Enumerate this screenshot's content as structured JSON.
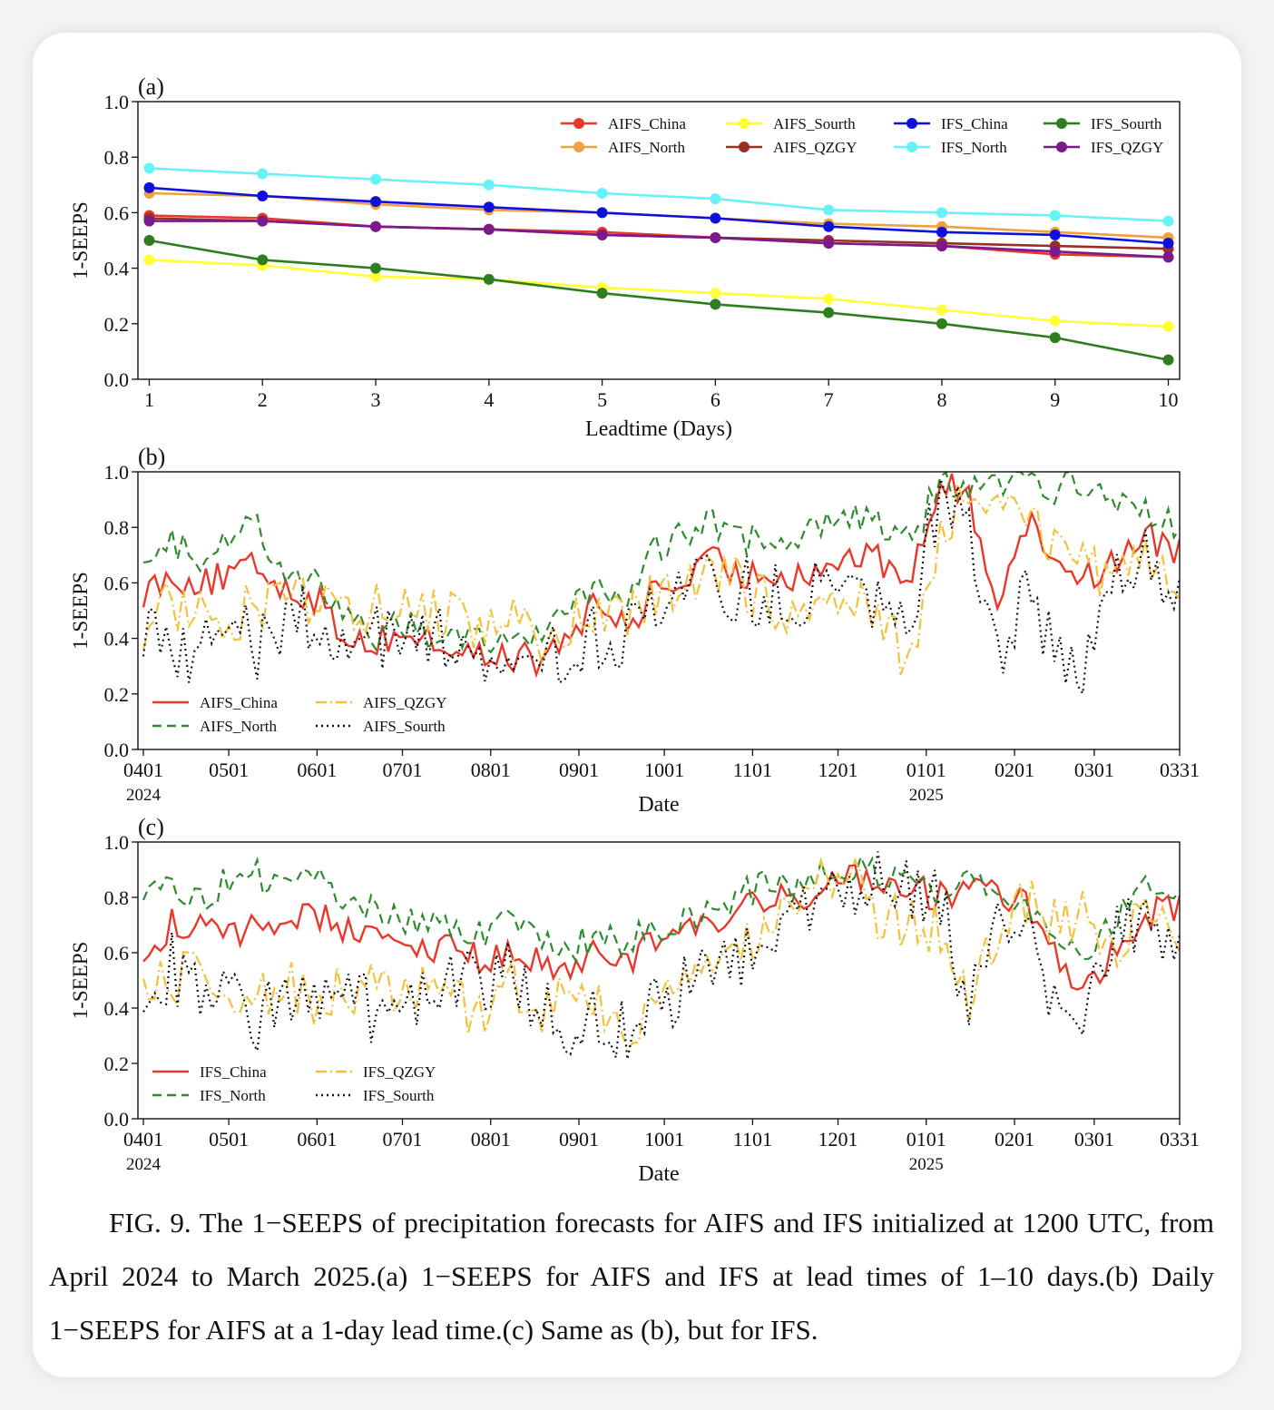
{
  "chart_data": [
    {
      "panel": "(a)",
      "type": "line",
      "xlabel": "Leadtime (Days)",
      "ylabel": "1-SEEPS",
      "xlim": [
        0.9,
        10.1
      ],
      "ylim": [
        0.0,
        1.0
      ],
      "x": [
        1,
        2,
        3,
        4,
        5,
        6,
        7,
        8,
        9,
        10
      ],
      "yticks": [
        "0.0",
        "0.2",
        "0.4",
        "0.6",
        "0.8",
        "1.0"
      ],
      "xticks": [
        "1",
        "2",
        "3",
        "4",
        "5",
        "6",
        "7",
        "8",
        "9",
        "10"
      ],
      "legend_position": "top-right",
      "series": [
        {
          "name": "AIFS_China",
          "color": "#e8382b",
          "values": [
            0.59,
            0.58,
            0.55,
            0.54,
            0.53,
            0.51,
            0.49,
            0.48,
            0.45,
            0.44
          ]
        },
        {
          "name": "AIFS_North",
          "color": "#f0a13d",
          "values": [
            0.67,
            0.66,
            0.63,
            0.61,
            0.6,
            0.58,
            0.56,
            0.55,
            0.53,
            0.51
          ]
        },
        {
          "name": "AIFS_Sourth",
          "color": "#ffff33",
          "values": [
            0.43,
            0.41,
            0.37,
            0.36,
            0.33,
            0.31,
            0.29,
            0.25,
            0.21,
            0.19
          ]
        },
        {
          "name": "AIFS_QZGY",
          "color": "#9c2f25",
          "values": [
            0.58,
            0.57,
            0.55,
            0.54,
            0.52,
            0.51,
            0.5,
            0.49,
            0.48,
            0.47
          ]
        },
        {
          "name": "IFS_China",
          "color": "#1010dd",
          "values": [
            0.69,
            0.66,
            0.64,
            0.62,
            0.6,
            0.58,
            0.55,
            0.53,
            0.52,
            0.49
          ]
        },
        {
          "name": "IFS_North",
          "color": "#66f2f7",
          "values": [
            0.76,
            0.74,
            0.72,
            0.7,
            0.67,
            0.65,
            0.61,
            0.6,
            0.59,
            0.57
          ]
        },
        {
          "name": "IFS_Sourth",
          "color": "#2e7d1f",
          "values": [
            0.5,
            0.43,
            0.4,
            0.36,
            0.31,
            0.27,
            0.24,
            0.2,
            0.15,
            0.07
          ]
        },
        {
          "name": "IFS_QZGY",
          "color": "#7a1a8c",
          "values": [
            0.57,
            0.57,
            0.55,
            0.54,
            0.52,
            0.51,
            0.49,
            0.48,
            0.46,
            0.44
          ]
        }
      ]
    },
    {
      "panel": "(b)",
      "type": "line",
      "xlabel": "Date",
      "ylabel": "1-SEEPS",
      "ylim": [
        0.0,
        1.0
      ],
      "yticks": [
        "0.0",
        "0.2",
        "0.4",
        "0.6",
        "0.8",
        "1.0"
      ],
      "xticks": [
        {
          "label": "0401",
          "sub": "2024",
          "day": 0
        },
        {
          "label": "0501",
          "sub": "",
          "day": 30
        },
        {
          "label": "0601",
          "sub": "",
          "day": 61
        },
        {
          "label": "0701",
          "sub": "",
          "day": 91
        },
        {
          "label": "0801",
          "sub": "",
          "day": 122
        },
        {
          "label": "0901",
          "sub": "",
          "day": 153
        },
        {
          "label": "1001",
          "sub": "",
          "day": 183
        },
        {
          "label": "1101",
          "sub": "",
          "day": 214
        },
        {
          "label": "1201",
          "sub": "",
          "day": 244
        },
        {
          "label": "0101",
          "sub": "2025",
          "day": 275
        },
        {
          "label": "0201",
          "sub": "",
          "day": 306
        },
        {
          "label": "0301",
          "sub": "",
          "day": 334
        },
        {
          "label": "0331",
          "sub": "",
          "day": 364
        }
      ],
      "legend_position": "bottom-left",
      "series": [
        {
          "name": "AIFS_China",
          "color": "#e8382b",
          "dash": "",
          "x": [
            0,
            10,
            20,
            30,
            40,
            50,
            60,
            70,
            80,
            90,
            100,
            110,
            120,
            130,
            140,
            150,
            160,
            170,
            180,
            190,
            200,
            210,
            220,
            230,
            240,
            250,
            260,
            270,
            280,
            290,
            300,
            310,
            320,
            330,
            340,
            350,
            364
          ],
          "values": [
            0.57,
            0.63,
            0.6,
            0.62,
            0.66,
            0.58,
            0.55,
            0.42,
            0.38,
            0.42,
            0.39,
            0.36,
            0.33,
            0.34,
            0.31,
            0.42,
            0.52,
            0.44,
            0.58,
            0.6,
            0.68,
            0.62,
            0.64,
            0.63,
            0.66,
            0.7,
            0.67,
            0.62,
            0.96,
            0.9,
            0.55,
            0.82,
            0.7,
            0.62,
            0.66,
            0.78,
            0.72
          ]
        },
        {
          "name": "AIFS_North",
          "color": "#2e8b2e",
          "dash": "10,6",
          "x": [
            0,
            10,
            20,
            30,
            40,
            50,
            60,
            70,
            80,
            90,
            100,
            110,
            120,
            130,
            140,
            150,
            160,
            170,
            180,
            190,
            200,
            210,
            220,
            230,
            240,
            250,
            260,
            270,
            280,
            290,
            300,
            310,
            320,
            330,
            340,
            350,
            364
          ],
          "values": [
            0.73,
            0.74,
            0.7,
            0.78,
            0.8,
            0.65,
            0.62,
            0.48,
            0.4,
            0.45,
            0.43,
            0.42,
            0.4,
            0.42,
            0.38,
            0.52,
            0.6,
            0.55,
            0.72,
            0.78,
            0.82,
            0.74,
            0.78,
            0.76,
            0.84,
            0.86,
            0.8,
            0.74,
            0.98,
            0.95,
            0.96,
            0.96,
            0.94,
            0.96,
            0.92,
            0.88,
            0.8
          ]
        },
        {
          "name": "AIFS_QZGY",
          "color": "#f2c23c",
          "dash": "12,4,2,4",
          "x": [
            0,
            10,
            20,
            30,
            40,
            50,
            60,
            70,
            80,
            90,
            100,
            110,
            120,
            130,
            140,
            150,
            160,
            170,
            180,
            190,
            200,
            210,
            220,
            230,
            240,
            250,
            260,
            270,
            280,
            290,
            300,
            310,
            320,
            330,
            340,
            350,
            364
          ],
          "values": [
            0.45,
            0.52,
            0.5,
            0.48,
            0.52,
            0.55,
            0.5,
            0.54,
            0.5,
            0.52,
            0.5,
            0.48,
            0.45,
            0.5,
            0.3,
            0.44,
            0.48,
            0.5,
            0.55,
            0.58,
            0.62,
            0.6,
            0.55,
            0.45,
            0.5,
            0.55,
            0.45,
            0.3,
            0.8,
            0.92,
            0.95,
            0.85,
            0.75,
            0.7,
            0.55,
            0.7,
            0.62
          ]
        },
        {
          "name": "AIFS_Sourth",
          "color": "#111111",
          "dash": "2,4",
          "x": [
            0,
            10,
            20,
            30,
            40,
            50,
            60,
            70,
            80,
            90,
            100,
            110,
            120,
            130,
            140,
            150,
            160,
            170,
            180,
            190,
            200,
            210,
            220,
            230,
            240,
            250,
            260,
            270,
            280,
            290,
            300,
            310,
            320,
            330,
            340,
            350,
            364
          ],
          "values": [
            0.45,
            0.4,
            0.35,
            0.42,
            0.38,
            0.45,
            0.48,
            0.38,
            0.42,
            0.4,
            0.38,
            0.42,
            0.35,
            0.4,
            0.28,
            0.38,
            0.42,
            0.4,
            0.48,
            0.55,
            0.6,
            0.58,
            0.54,
            0.55,
            0.6,
            0.58,
            0.56,
            0.52,
            0.92,
            0.85,
            0.3,
            0.55,
            0.35,
            0.25,
            0.6,
            0.7,
            0.55
          ]
        }
      ]
    },
    {
      "panel": "(c)",
      "type": "line",
      "xlabel": "Date",
      "ylabel": "1-SEEPS",
      "ylim": [
        0.0,
        1.0
      ],
      "yticks": [
        "0.0",
        "0.2",
        "0.4",
        "0.6",
        "0.8",
        "1.0"
      ],
      "xticks": [
        {
          "label": "0401",
          "sub": "2024",
          "day": 0
        },
        {
          "label": "0501",
          "sub": "",
          "day": 30
        },
        {
          "label": "0601",
          "sub": "",
          "day": 61
        },
        {
          "label": "0701",
          "sub": "",
          "day": 91
        },
        {
          "label": "0801",
          "sub": "",
          "day": 122
        },
        {
          "label": "0901",
          "sub": "",
          "day": 153
        },
        {
          "label": "1001",
          "sub": "",
          "day": 183
        },
        {
          "label": "1101",
          "sub": "",
          "day": 214
        },
        {
          "label": "1201",
          "sub": "",
          "day": 244
        },
        {
          "label": "0101",
          "sub": "2025",
          "day": 275
        },
        {
          "label": "0201",
          "sub": "",
          "day": 306
        },
        {
          "label": "0301",
          "sub": "",
          "day": 334
        },
        {
          "label": "0331",
          "sub": "",
          "day": 364
        }
      ],
      "legend_position": "bottom-left",
      "series": [
        {
          "name": "IFS_China",
          "color": "#e8382b",
          "dash": "",
          "x": [
            0,
            10,
            20,
            30,
            40,
            50,
            60,
            70,
            80,
            90,
            100,
            110,
            120,
            130,
            140,
            150,
            160,
            170,
            180,
            190,
            200,
            210,
            220,
            230,
            240,
            250,
            260,
            270,
            280,
            290,
            300,
            310,
            320,
            330,
            340,
            350,
            364
          ],
          "values": [
            0.58,
            0.7,
            0.68,
            0.65,
            0.72,
            0.7,
            0.74,
            0.7,
            0.66,
            0.64,
            0.62,
            0.6,
            0.58,
            0.6,
            0.56,
            0.52,
            0.6,
            0.58,
            0.64,
            0.66,
            0.7,
            0.75,
            0.78,
            0.8,
            0.86,
            0.88,
            0.86,
            0.84,
            0.8,
            0.82,
            0.8,
            0.78,
            0.62,
            0.45,
            0.6,
            0.72,
            0.78
          ]
        },
        {
          "name": "IFS_North",
          "color": "#2e8b2e",
          "dash": "10,6",
          "x": [
            0,
            10,
            20,
            30,
            40,
            50,
            60,
            70,
            80,
            90,
            100,
            110,
            120,
            130,
            140,
            150,
            160,
            170,
            180,
            190,
            200,
            210,
            220,
            230,
            240,
            250,
            260,
            270,
            280,
            290,
            300,
            310,
            320,
            330,
            340,
            350,
            364
          ],
          "values": [
            0.8,
            0.85,
            0.8,
            0.86,
            0.88,
            0.82,
            0.88,
            0.8,
            0.76,
            0.72,
            0.7,
            0.68,
            0.66,
            0.72,
            0.64,
            0.62,
            0.66,
            0.64,
            0.68,
            0.72,
            0.76,
            0.82,
            0.84,
            0.84,
            0.88,
            0.9,
            0.88,
            0.86,
            0.84,
            0.86,
            0.82,
            0.8,
            0.68,
            0.6,
            0.7,
            0.86,
            0.84
          ]
        },
        {
          "name": "IFS_QZGY",
          "color": "#f2c23c",
          "dash": "12,4,2,4",
          "x": [
            0,
            10,
            20,
            30,
            40,
            50,
            60,
            70,
            80,
            90,
            100,
            110,
            120,
            130,
            140,
            150,
            160,
            170,
            180,
            190,
            200,
            210,
            220,
            230,
            240,
            250,
            260,
            270,
            280,
            290,
            300,
            310,
            320,
            330,
            340,
            350,
            364
          ],
          "values": [
            0.52,
            0.48,
            0.55,
            0.45,
            0.44,
            0.5,
            0.42,
            0.48,
            0.46,
            0.44,
            0.48,
            0.4,
            0.38,
            0.48,
            0.36,
            0.5,
            0.4,
            0.3,
            0.38,
            0.46,
            0.55,
            0.62,
            0.7,
            0.8,
            0.9,
            0.88,
            0.7,
            0.72,
            0.68,
            0.45,
            0.7,
            0.8,
            0.7,
            0.74,
            0.62,
            0.76,
            0.7
          ]
        },
        {
          "name": "IFS_Sourth",
          "color": "#111111",
          "dash": "2,4",
          "x": [
            0,
            10,
            20,
            30,
            40,
            50,
            60,
            70,
            80,
            90,
            100,
            110,
            120,
            130,
            140,
            150,
            160,
            170,
            180,
            190,
            200,
            210,
            220,
            230,
            240,
            250,
            260,
            270,
            280,
            290,
            300,
            310,
            320,
            330,
            340,
            350,
            364
          ],
          "values": [
            0.4,
            0.55,
            0.42,
            0.45,
            0.35,
            0.48,
            0.4,
            0.45,
            0.38,
            0.42,
            0.4,
            0.48,
            0.5,
            0.55,
            0.4,
            0.3,
            0.38,
            0.32,
            0.4,
            0.48,
            0.52,
            0.6,
            0.66,
            0.72,
            0.85,
            0.8,
            0.86,
            0.82,
            0.78,
            0.4,
            0.75,
            0.7,
            0.45,
            0.3,
            0.65,
            0.72,
            0.62
          ]
        }
      ]
    }
  ],
  "caption": "FIG. 9. The 1−SEEPS of precipitation forecasts for AIFS and IFS initialized at 1200 UTC, from April 2024 to March 2025.(a) 1−SEEPS for AIFS and IFS at lead times of 1–10 days.(b) Daily 1−SEEPS for AIFS at a 1-day lead time.(c) Same as (b), but for IFS."
}
